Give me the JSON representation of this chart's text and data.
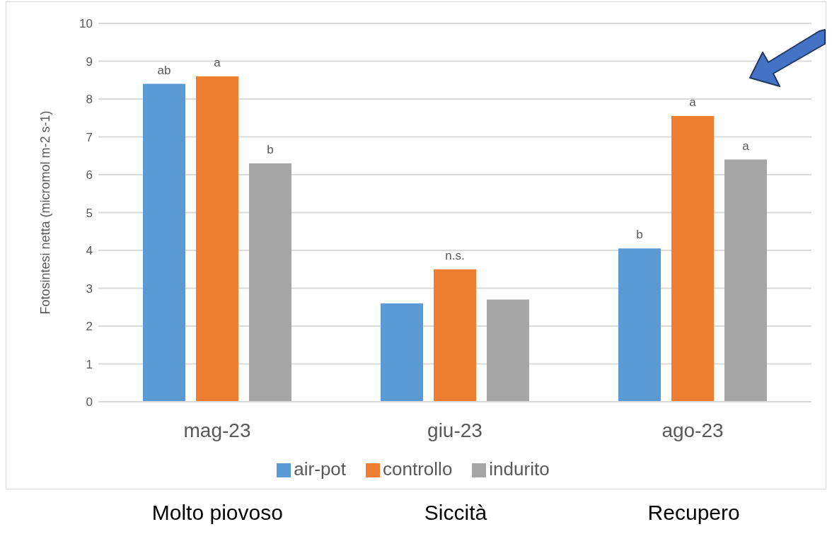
{
  "chart_data": {
    "type": "bar",
    "ylabel": "Fotosintesi netta (micromol m-2 s-1)",
    "categories": [
      "mag-23",
      "giu-23",
      "ago-23"
    ],
    "series": [
      {
        "name": "air-pot",
        "color": "#5b9bd5",
        "values": [
          8.4,
          2.6,
          4.05
        ],
        "value_labels": [
          "ab",
          null,
          "b"
        ]
      },
      {
        "name": "controllo",
        "color": "#ed7d31",
        "values": [
          8.6,
          3.5,
          7.55
        ],
        "value_labels": [
          "a",
          "n.s.",
          "a"
        ]
      },
      {
        "name": "indurito",
        "color": "#a5a5a5",
        "values": [
          6.3,
          2.7,
          6.4
        ],
        "value_labels": [
          "b",
          null,
          "a"
        ]
      }
    ],
    "ylim": [
      0,
      10
    ],
    "yticks": [
      0,
      1,
      2,
      3,
      4,
      5,
      6,
      7,
      8,
      9,
      10
    ],
    "grid": "y",
    "legend": "bottom",
    "annotations": [
      "Molto piovoso",
      "Siccità",
      "Recupero"
    ]
  }
}
